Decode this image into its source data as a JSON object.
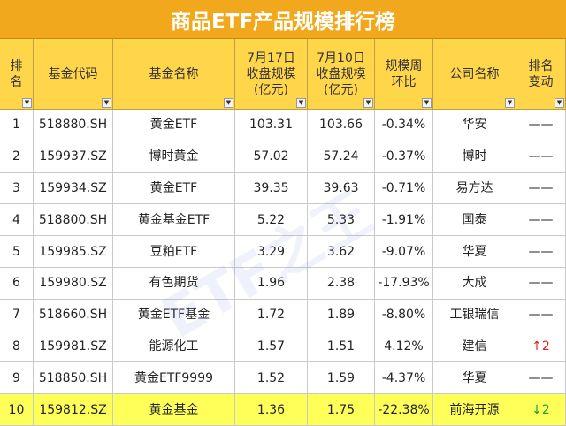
{
  "header": {
    "title": "商品ETF产品规模排行榜",
    "watermark": "ETF之王"
  },
  "table": {
    "columns": [
      "排\n名",
      "基金代码",
      "基金名称",
      "7月17日\n收盘规模\n(亿元)",
      "7月10日\n收盘规模\n(亿元)",
      "规模周\n环比",
      "公司名称",
      "排名\n变动"
    ],
    "rows": [
      [
        "1",
        "518880.SH",
        "黄金ETF",
        "103.31",
        "103.66",
        "-0.34%",
        "华安",
        "——"
      ],
      [
        "2",
        "159937.SZ",
        "博时黄金",
        "57.02",
        "57.24",
        "-0.37%",
        "博时",
        "——"
      ],
      [
        "3",
        "159934.SZ",
        "黄金ETF",
        "39.35",
        "39.63",
        "-0.71%",
        "易方达",
        "——"
      ],
      [
        "4",
        "518800.SH",
        "黄金基金ETF",
        "5.22",
        "5.33",
        "-1.91%",
        "国泰",
        "——"
      ],
      [
        "5",
        "159985.SZ",
        "豆粕ETF",
        "3.29",
        "3.62",
        "-9.07%",
        "华夏",
        "——"
      ],
      [
        "6",
        "159980.SZ",
        "有色期货",
        "1.96",
        "2.38",
        "-17.93%",
        "大成",
        "——"
      ],
      [
        "7",
        "518660.SH",
        "黄金ETF基金",
        "1.72",
        "1.89",
        "-8.80%",
        "工银瑞信",
        "——"
      ],
      [
        "8",
        "159981.SZ",
        "能源化工",
        "1.57",
        "1.51",
        "4.12%",
        "建信",
        "↑2"
      ],
      [
        "9",
        "518850.SH",
        "黄金ETF9999",
        "1.52",
        "1.59",
        "-4.37%",
        "华夏",
        "——"
      ],
      [
        "10",
        "159812.SZ",
        "黄金基金",
        "1.36",
        "1.75",
        "-22.38%",
        "前海开源",
        "↓2"
      ]
    ]
  }
}
